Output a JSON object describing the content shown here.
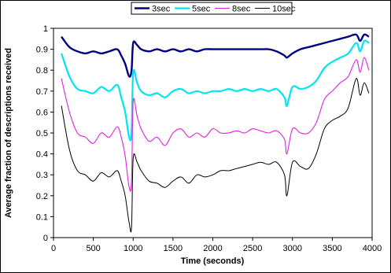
{
  "chart_data": {
    "type": "line",
    "title": "",
    "xlabel": "Time (seconds)",
    "ylabel": "Average fraction of descriptions received",
    "xlim": [
      0,
      4000
    ],
    "ylim": [
      0,
      1
    ],
    "x_ticks": [
      "0",
      "500",
      "1000",
      "1500",
      "2000",
      "2500",
      "3000",
      "3500",
      "4000"
    ],
    "y_ticks": [
      "0",
      "0.1",
      "0.2",
      "0.3",
      "0.4",
      "0.5",
      "0.6",
      "0.7",
      "0.8",
      "0.9",
      "1"
    ],
    "grid": false,
    "legend_position": "top-center",
    "x": [
      100,
      200,
      300,
      400,
      500,
      600,
      700,
      800,
      850,
      900,
      950,
      980,
      1000,
      1050,
      1100,
      1200,
      1300,
      1400,
      1500,
      1600,
      1700,
      1800,
      1900,
      2000,
      2100,
      2200,
      2300,
      2400,
      2500,
      2600,
      2700,
      2800,
      2900,
      2930,
      3000,
      3100,
      3200,
      3300,
      3400,
      3500,
      3600,
      3700,
      3800,
      3850,
      3900,
      3960
    ],
    "series": [
      {
        "name": "3sec",
        "color": "#000080",
        "values": [
          0.96,
          0.91,
          0.89,
          0.88,
          0.89,
          0.88,
          0.89,
          0.9,
          0.87,
          0.83,
          0.77,
          0.8,
          0.93,
          0.92,
          0.9,
          0.89,
          0.9,
          0.89,
          0.9,
          0.89,
          0.9,
          0.89,
          0.9,
          0.9,
          0.9,
          0.9,
          0.9,
          0.9,
          0.9,
          0.9,
          0.9,
          0.89,
          0.87,
          0.86,
          0.88,
          0.9,
          0.91,
          0.92,
          0.93,
          0.94,
          0.95,
          0.96,
          0.97,
          0.94,
          0.97,
          0.96
        ]
      },
      {
        "name": "5sec",
        "color": "#00E5EE",
        "values": [
          0.88,
          0.77,
          0.71,
          0.7,
          0.69,
          0.72,
          0.7,
          0.73,
          0.67,
          0.6,
          0.48,
          0.5,
          0.79,
          0.74,
          0.7,
          0.68,
          0.69,
          0.67,
          0.7,
          0.71,
          0.69,
          0.7,
          0.69,
          0.7,
          0.7,
          0.71,
          0.7,
          0.71,
          0.7,
          0.71,
          0.7,
          0.71,
          0.67,
          0.63,
          0.72,
          0.71,
          0.72,
          0.75,
          0.81,
          0.84,
          0.86,
          0.88,
          0.93,
          0.89,
          0.94,
          0.93
        ]
      },
      {
        "name": "8sec",
        "color": "#E020E0",
        "values": [
          0.76,
          0.6,
          0.5,
          0.48,
          0.45,
          0.5,
          0.48,
          0.53,
          0.48,
          0.39,
          0.24,
          0.27,
          0.65,
          0.58,
          0.52,
          0.46,
          0.48,
          0.44,
          0.5,
          0.52,
          0.48,
          0.5,
          0.48,
          0.52,
          0.5,
          0.5,
          0.51,
          0.5,
          0.52,
          0.51,
          0.5,
          0.51,
          0.47,
          0.4,
          0.52,
          0.5,
          0.5,
          0.55,
          0.66,
          0.7,
          0.74,
          0.77,
          0.85,
          0.79,
          0.86,
          0.8
        ]
      },
      {
        "name": "10sec",
        "color": "#000000",
        "values": [
          0.63,
          0.42,
          0.32,
          0.3,
          0.27,
          0.31,
          0.29,
          0.32,
          0.27,
          0.2,
          0.07,
          0.05,
          0.38,
          0.36,
          0.32,
          0.27,
          0.26,
          0.24,
          0.27,
          0.29,
          0.26,
          0.3,
          0.29,
          0.3,
          0.32,
          0.32,
          0.33,
          0.34,
          0.35,
          0.36,
          0.35,
          0.36,
          0.3,
          0.2,
          0.36,
          0.34,
          0.33,
          0.4,
          0.52,
          0.56,
          0.58,
          0.62,
          0.76,
          0.68,
          0.74,
          0.69
        ]
      }
    ]
  }
}
